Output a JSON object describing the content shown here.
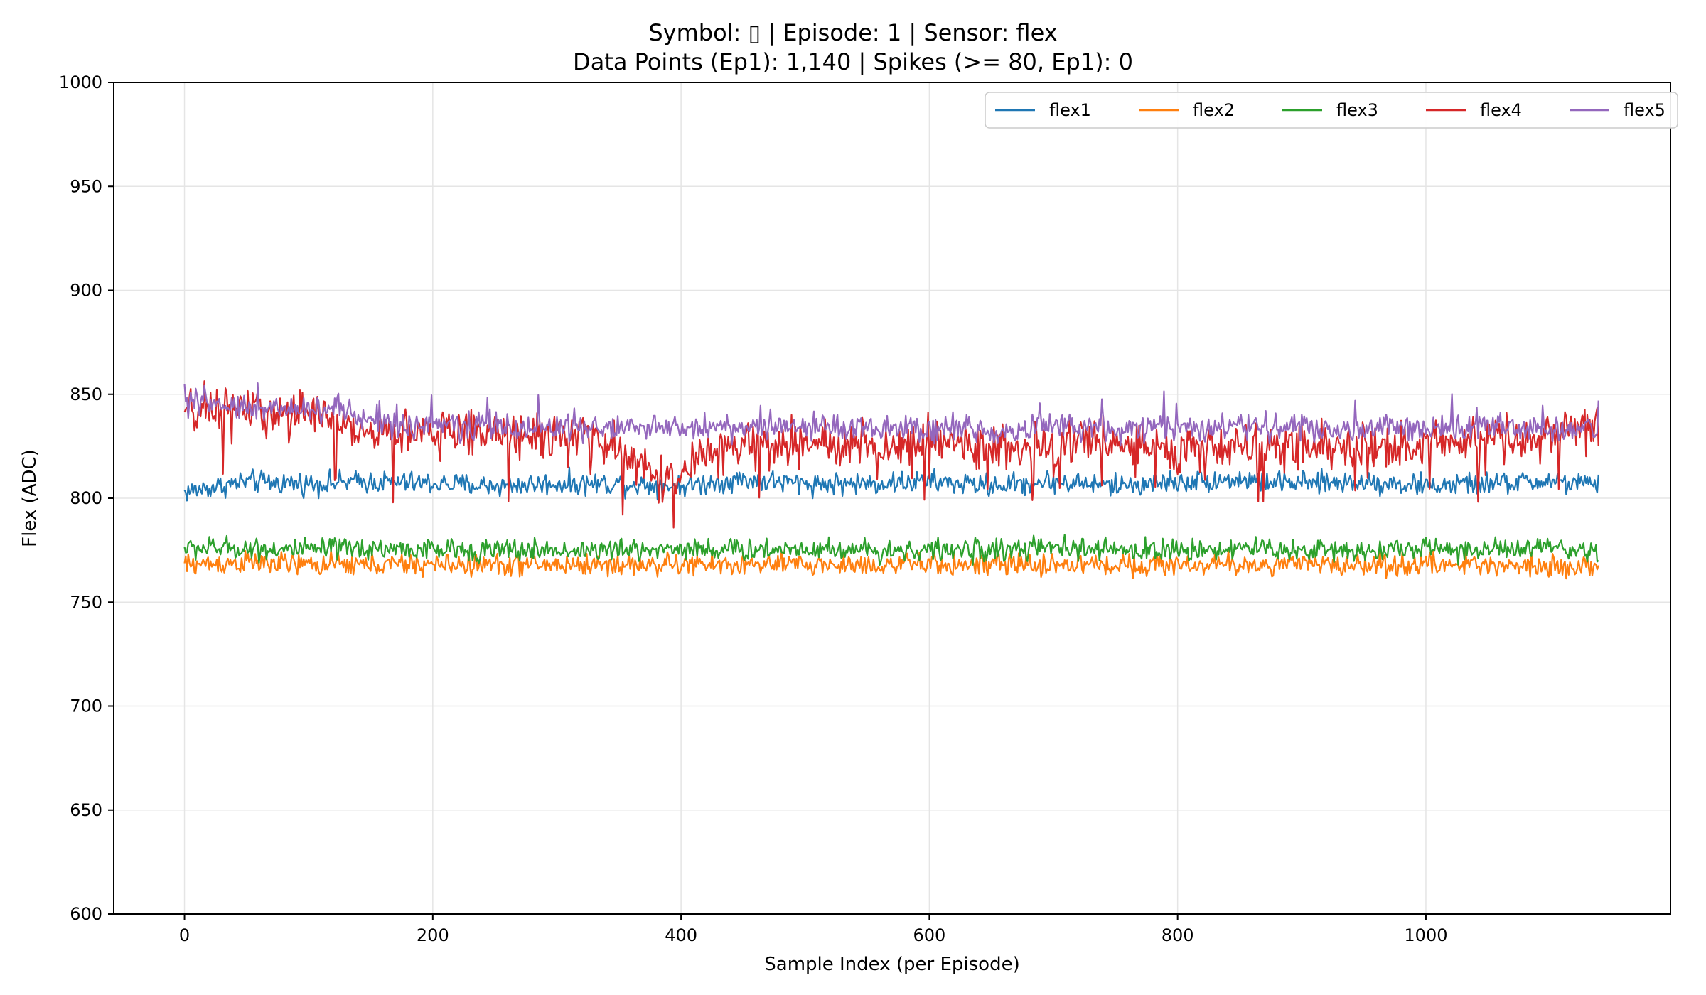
{
  "chart_data": {
    "type": "line",
    "title_lines": [
      "Symbol: ▯ | Episode: 1 | Sensor: flex",
      "Data Points (Ep1): 1,140 | Spikes (>= 80, Ep1): 0"
    ],
    "xlabel": "Sample Index (per Episode)",
    "ylabel": "Flex (ADC)",
    "xlim": [
      -57,
      1197
    ],
    "ylim": [
      600,
      1000
    ],
    "xticks": [
      0,
      200,
      400,
      600,
      800,
      1000
    ],
    "yticks": [
      600,
      650,
      700,
      750,
      800,
      850,
      900,
      950,
      1000
    ],
    "grid": true,
    "legend_position": "top-right",
    "n_points": 1140,
    "series": [
      {
        "name": "flex1",
        "color": "#1f77b4",
        "x": [
          0,
          50,
          100,
          150,
          200,
          250,
          300,
          350,
          400,
          450,
          500,
          550,
          600,
          650,
          700,
          750,
          800,
          850,
          900,
          950,
          1000,
          1050,
          1100,
          1139
        ],
        "y": [
          803,
          808,
          807,
          808,
          807,
          806,
          807,
          807,
          806,
          809,
          807,
          807,
          808,
          806,
          808,
          806,
          808,
          809,
          807,
          808,
          806,
          807,
          808,
          806
        ],
        "noise": 5
      },
      {
        "name": "flex2",
        "color": "#ff7f0e",
        "x": [
          0,
          50,
          100,
          150,
          200,
          250,
          300,
          350,
          400,
          450,
          500,
          550,
          600,
          650,
          700,
          750,
          800,
          850,
          900,
          950,
          1000,
          1050,
          1100,
          1139
        ],
        "y": [
          768,
          769,
          768,
          768,
          768,
          768,
          768,
          768,
          768,
          768,
          768,
          768,
          768,
          768,
          768,
          768,
          768,
          768,
          768,
          768,
          768,
          768,
          768,
          766
        ],
        "noise": 5
      },
      {
        "name": "flex3",
        "color": "#2ca02c",
        "x": [
          0,
          50,
          100,
          150,
          200,
          250,
          300,
          350,
          400,
          450,
          500,
          550,
          600,
          650,
          700,
          750,
          800,
          850,
          900,
          950,
          1000,
          1050,
          1100,
          1139
        ],
        "y": [
          776,
          776,
          775,
          776,
          775,
          775,
          775,
          775,
          776,
          775,
          776,
          775,
          775,
          775,
          776,
          775,
          775,
          776,
          775,
          775,
          776,
          775,
          776,
          772
        ],
        "noise": 5
      },
      {
        "name": "flex4",
        "color": "#d62728",
        "x": [
          0,
          30,
          60,
          100,
          120,
          140,
          180,
          220,
          260,
          300,
          330,
          360,
          380,
          400,
          420,
          450,
          500,
          550,
          600,
          650,
          700,
          750,
          800,
          850,
          900,
          950,
          1000,
          1050,
          1100,
          1139
        ],
        "y": [
          841,
          844,
          842,
          840,
          838,
          832,
          832,
          832,
          831,
          830,
          828,
          818,
          812,
          810,
          822,
          825,
          826,
          826,
          826,
          825,
          825,
          828,
          822,
          824,
          826,
          824,
          826,
          828,
          831,
          835
        ],
        "noise": 10
      },
      {
        "name": "flex5",
        "color": "#9467bd",
        "x": [
          0,
          30,
          60,
          100,
          120,
          140,
          180,
          220,
          260,
          300,
          350,
          400,
          450,
          500,
          550,
          600,
          650,
          700,
          750,
          800,
          850,
          900,
          950,
          1000,
          1050,
          1100,
          1139
        ],
        "y": [
          846,
          844,
          844,
          843,
          843,
          837,
          835,
          835,
          834,
          834,
          834,
          834,
          834,
          834,
          834,
          834,
          833,
          834,
          833,
          834,
          834,
          834,
          834,
          834,
          834,
          833,
          833
        ],
        "noise": 6
      }
    ]
  }
}
